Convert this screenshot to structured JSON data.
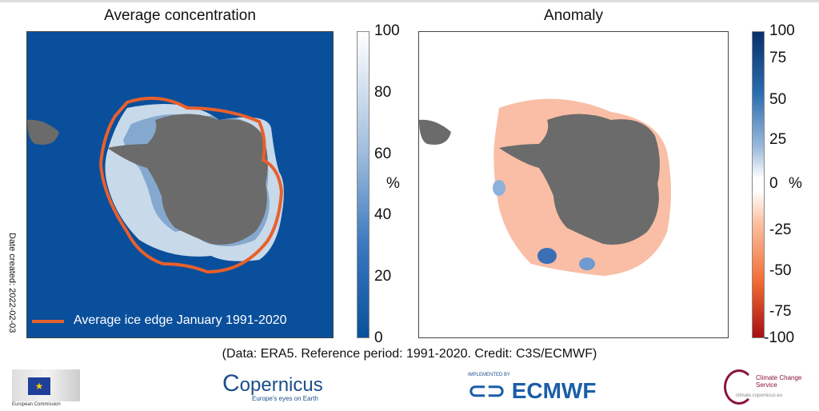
{
  "left_panel": {
    "title": "Average concentration",
    "legend_label": "Average ice edge January 1991-2020",
    "colorbar": {
      "unit": "%",
      "ticks": [
        "100",
        "80",
        "60",
        "40",
        "20",
        "0"
      ]
    }
  },
  "right_panel": {
    "title": "Anomaly",
    "colorbar": {
      "unit": "%",
      "ticks": [
        "100",
        "75",
        "50",
        "25",
        "0",
        "-25",
        "-50",
        "-75",
        "-100"
      ]
    }
  },
  "side_note": "Date created: 2022-02-03",
  "credit": "(Data: ERA5.  Reference period: 1991-2020.  Credit: C3S/ECMWF)",
  "logos": {
    "ec": "European Commission",
    "copernicus": "opernicus",
    "copernicus_tag": "Europe's eyes on Earth",
    "ecmwf_pre": "IMPLEMENTED BY",
    "ecmwf": "ECMWF",
    "c3s": "Climate Change Service",
    "c3s_url": "climate.copernicus.eu"
  },
  "colors": {
    "ocean": "#0a4f9c",
    "land": "#6b6b6b",
    "ice_edge": "#e8602c",
    "anom_pos": "#08306b",
    "anom_neg": "#a50f15"
  }
}
